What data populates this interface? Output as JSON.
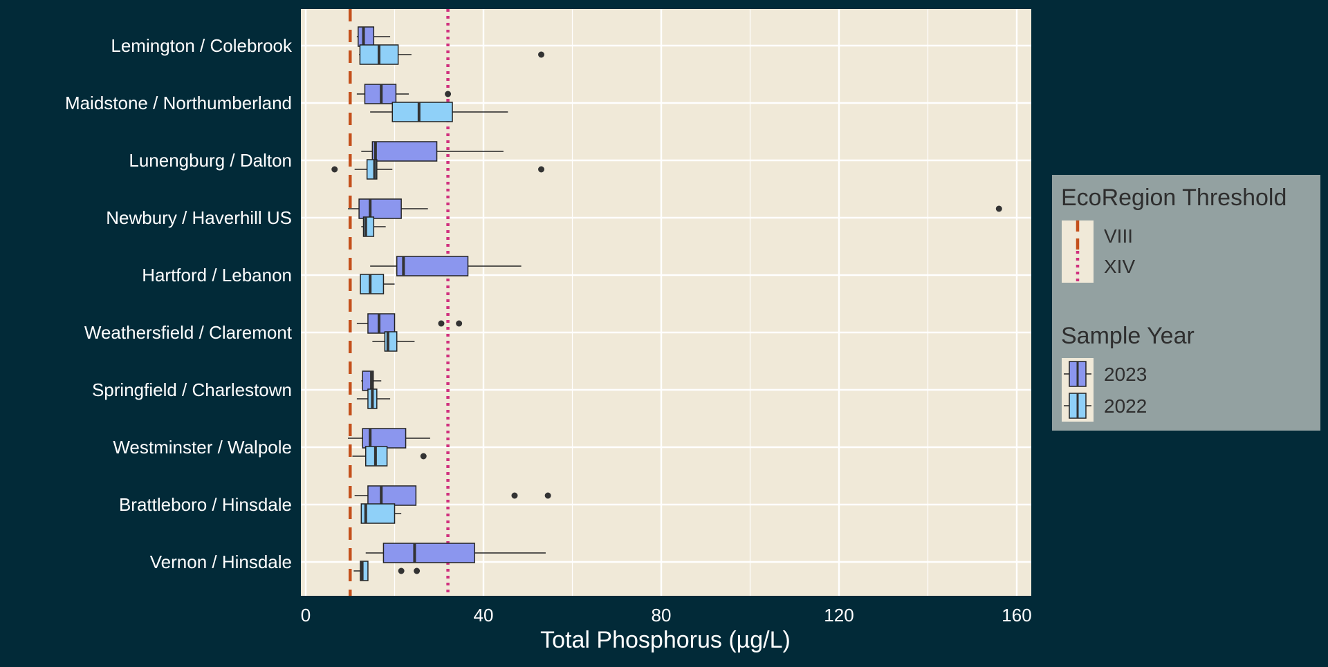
{
  "chart_data": {
    "type": "boxplot",
    "orientation": "horizontal",
    "xlabel": "Total Phosphorus (µg/L)",
    "xlim": [
      0,
      163
    ],
    "xticks": [
      0,
      40,
      80,
      120,
      160
    ],
    "grid": true,
    "categories": [
      "Lemington / Colebrook",
      "Maidstone / Northumberland",
      "Lunengburg / Dalton",
      "Newbury / Haverhill US",
      "Hartford / Lebanon",
      "Weathersfield / Claremont",
      "Springfield / Charlestown",
      "Westminster / Walpole",
      "Brattleboro / Hinsdale",
      "Vernon / Hinsdale"
    ],
    "series": [
      {
        "name": "2023",
        "color": "#8b96ee",
        "boxes": [
          {
            "whisker_low": 11.5,
            "q1": 11.8,
            "median": 13.0,
            "q3": 15.3,
            "whisker_high": 19.0,
            "outliers": []
          },
          {
            "whisker_low": 11.5,
            "q1": 13.3,
            "median": 17.0,
            "q3": 20.3,
            "whisker_high": 23.2,
            "outliers": [
              32.0
            ]
          },
          {
            "whisker_low": 12.5,
            "q1": 15.0,
            "median": 15.7,
            "q3": 29.5,
            "whisker_high": 44.5,
            "outliers": []
          },
          {
            "whisker_low": 9.5,
            "q1": 12.0,
            "median": 14.5,
            "q3": 21.5,
            "whisker_high": 27.5,
            "outliers": [
              156.0
            ]
          },
          {
            "whisker_low": 14.5,
            "q1": 20.5,
            "median": 22.0,
            "q3": 36.5,
            "whisker_high": 48.5,
            "outliers": []
          },
          {
            "whisker_low": 11.5,
            "q1": 14.0,
            "median": 16.5,
            "q3": 20.0,
            "whisker_high": 20.0,
            "outliers": [
              30.5,
              34.5
            ]
          },
          {
            "whisker_low": 12.5,
            "q1": 12.8,
            "median": 14.8,
            "q3": 15.2,
            "whisker_high": 17.0,
            "outliers": []
          },
          {
            "whisker_low": 9.5,
            "q1": 12.8,
            "median": 14.5,
            "q3": 22.5,
            "whisker_high": 28.0,
            "outliers": []
          },
          {
            "whisker_low": 11.0,
            "q1": 14.0,
            "median": 17.0,
            "q3": 24.8,
            "whisker_high": 24.8,
            "outliers": [
              47.0,
              54.5
            ]
          },
          {
            "whisker_low": 13.5,
            "q1": 17.5,
            "median": 24.5,
            "q3": 38.0,
            "whisker_high": 54.0,
            "outliers": []
          }
        ]
      },
      {
        "name": "2022",
        "color": "#8fd0f8",
        "boxes": [
          {
            "whisker_low": 12.0,
            "q1": 12.2,
            "median": 16.5,
            "q3": 20.8,
            "whisker_high": 23.8,
            "outliers": [
              53.0
            ]
          },
          {
            "whisker_low": 14.5,
            "q1": 19.5,
            "median": 25.5,
            "q3": 33.0,
            "whisker_high": 45.5,
            "outliers": []
          },
          {
            "whisker_low": 11.0,
            "q1": 13.8,
            "median": 15.5,
            "q3": 16.0,
            "whisker_high": 19.5,
            "outliers": [
              6.5,
              53.0
            ]
          },
          {
            "whisker_low": 12.5,
            "q1": 13.0,
            "median": 13.5,
            "q3": 15.3,
            "whisker_high": 18.0,
            "outliers": []
          },
          {
            "whisker_low": 12.3,
            "q1": 12.3,
            "median": 14.5,
            "q3": 17.5,
            "whisker_high": 20.0,
            "outliers": []
          },
          {
            "whisker_low": 15.0,
            "q1": 17.8,
            "median": 18.5,
            "q3": 20.5,
            "whisker_high": 24.5,
            "outliers": []
          },
          {
            "whisker_low": 11.5,
            "q1": 14.0,
            "median": 15.0,
            "q3": 16.0,
            "whisker_high": 19.0,
            "outliers": []
          },
          {
            "whisker_low": 10.5,
            "q1": 13.5,
            "median": 15.7,
            "q3": 18.3,
            "whisker_high": 18.3,
            "outliers": [
              26.5
            ]
          },
          {
            "whisker_low": 12.5,
            "q1": 12.5,
            "median": 13.5,
            "q3": 20.0,
            "whisker_high": 21.5,
            "outliers": []
          },
          {
            "whisker_low": 10.8,
            "q1": 12.3,
            "median": 12.7,
            "q3": 14.0,
            "whisker_high": 14.0,
            "outliers": [
              21.5,
              25.0
            ]
          }
        ]
      }
    ],
    "reference_lines": [
      {
        "name": "VIII",
        "value": 10.0,
        "color": "#c4501b",
        "style": "dashed"
      },
      {
        "name": "XIV",
        "value": 32.0,
        "color": "#d0307e",
        "style": "dotted"
      }
    ],
    "legend": {
      "placement": "right",
      "threshold_title": "EcoRegion Threshold",
      "year_title": "Sample Year",
      "order": [
        "2023",
        "2022"
      ]
    },
    "colors": {
      "page_background": "#022a38",
      "panel_background": "#f0e9d8",
      "grid": "#ffffff",
      "legend_background": "#93a1a1",
      "text": "#ffffff",
      "legend_text": "#2e2e2e"
    }
  }
}
